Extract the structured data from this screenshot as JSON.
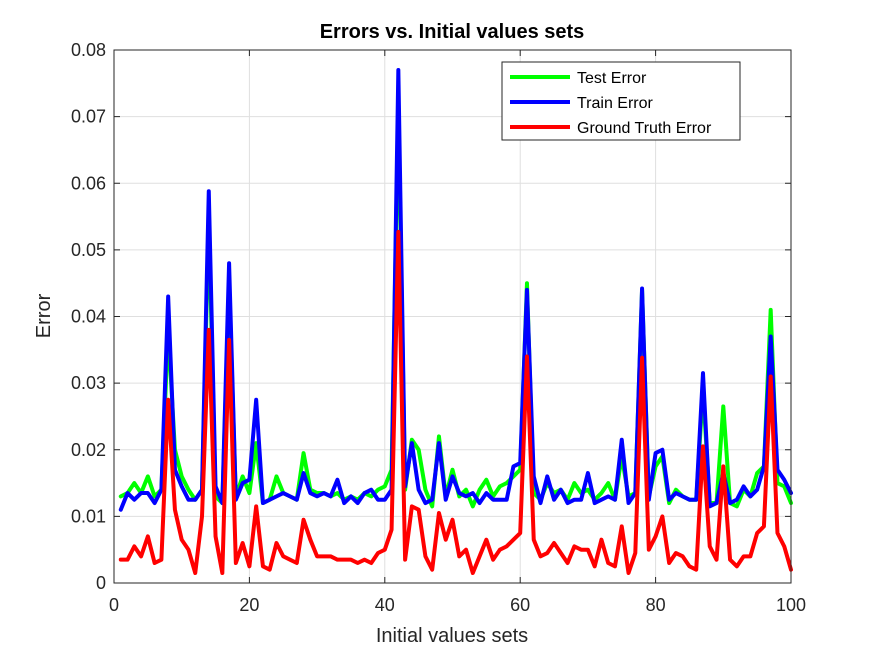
{
  "chart_data": {
    "type": "line",
    "title": "Errors vs. Initial values sets",
    "xlabel": "Initial values sets",
    "ylabel": "Error",
    "xlim": [
      0,
      100
    ],
    "ylim": [
      0,
      0.08
    ],
    "xticks": [
      0,
      20,
      40,
      60,
      80,
      100
    ],
    "yticks": [
      0,
      0.01,
      0.02,
      0.03,
      0.04,
      0.05,
      0.06,
      0.07,
      0.08
    ],
    "xtick_labels": [
      "0",
      "20",
      "40",
      "60",
      "80",
      "100"
    ],
    "ytick_labels": [
      "0",
      "0.01",
      "0.02",
      "0.03",
      "0.04",
      "0.05",
      "0.06",
      "0.07",
      "0.08"
    ],
    "grid": true,
    "legend_position": "top-right",
    "x": [
      1,
      2,
      3,
      4,
      5,
      6,
      7,
      8,
      9,
      10,
      11,
      12,
      13,
      14,
      15,
      16,
      17,
      18,
      19,
      20,
      21,
      22,
      23,
      24,
      25,
      26,
      27,
      28,
      29,
      30,
      31,
      32,
      33,
      34,
      35,
      36,
      37,
      38,
      39,
      40,
      41,
      42,
      43,
      44,
      45,
      46,
      47,
      48,
      49,
      50,
      51,
      52,
      53,
      54,
      55,
      56,
      57,
      58,
      59,
      60,
      61,
      62,
      63,
      64,
      65,
      66,
      67,
      68,
      69,
      70,
      71,
      72,
      73,
      74,
      75,
      76,
      77,
      78,
      79,
      80,
      81,
      82,
      83,
      84,
      85,
      86,
      87,
      88,
      89,
      90,
      91,
      92,
      93,
      94,
      95,
      96,
      97,
      98,
      99,
      100
    ],
    "series": [
      {
        "name": "Test Error",
        "color": "#00ff00",
        "values": [
          0.013,
          0.0135,
          0.015,
          0.0135,
          0.016,
          0.013,
          0.014,
          0.038,
          0.02,
          0.016,
          0.014,
          0.0125,
          0.014,
          0.055,
          0.013,
          0.012,
          0.045,
          0.013,
          0.016,
          0.0135,
          0.021,
          0.012,
          0.0125,
          0.016,
          0.0135,
          0.013,
          0.0125,
          0.0195,
          0.014,
          0.0135,
          0.0135,
          0.013,
          0.0135,
          0.0125,
          0.013,
          0.0125,
          0.0135,
          0.013,
          0.014,
          0.0145,
          0.017,
          0.072,
          0.014,
          0.0215,
          0.02,
          0.014,
          0.0115,
          0.022,
          0.013,
          0.017,
          0.013,
          0.014,
          0.0115,
          0.014,
          0.0155,
          0.013,
          0.0145,
          0.015,
          0.016,
          0.017,
          0.045,
          0.0135,
          0.0125,
          0.015,
          0.0135,
          0.014,
          0.0125,
          0.015,
          0.0135,
          0.014,
          0.0125,
          0.0135,
          0.015,
          0.0125,
          0.019,
          0.013,
          0.0135,
          0.044,
          0.013,
          0.0175,
          0.019,
          0.012,
          0.014,
          0.013,
          0.0125,
          0.0125,
          0.029,
          0.012,
          0.012,
          0.0265,
          0.012,
          0.0115,
          0.014,
          0.013,
          0.0165,
          0.0175,
          0.041,
          0.015,
          0.0145,
          0.012
        ]
      },
      {
        "name": "Train Error",
        "color": "#0000ff",
        "values": [
          0.011,
          0.0135,
          0.0125,
          0.0135,
          0.0135,
          0.012,
          0.014,
          0.043,
          0.017,
          0.0145,
          0.0125,
          0.0125,
          0.014,
          0.0588,
          0.0145,
          0.012,
          0.048,
          0.0125,
          0.015,
          0.0155,
          0.0275,
          0.012,
          0.0125,
          0.013,
          0.0135,
          0.013,
          0.0125,
          0.0165,
          0.0135,
          0.013,
          0.0135,
          0.013,
          0.0155,
          0.012,
          0.013,
          0.012,
          0.0135,
          0.014,
          0.0125,
          0.0125,
          0.014,
          0.077,
          0.0145,
          0.021,
          0.014,
          0.012,
          0.0125,
          0.021,
          0.0125,
          0.016,
          0.0135,
          0.013,
          0.0135,
          0.012,
          0.0135,
          0.0125,
          0.0125,
          0.0125,
          0.0175,
          0.018,
          0.044,
          0.016,
          0.012,
          0.016,
          0.0125,
          0.014,
          0.012,
          0.0125,
          0.0125,
          0.0165,
          0.012,
          0.0125,
          0.013,
          0.0125,
          0.0215,
          0.012,
          0.0135,
          0.0442,
          0.0125,
          0.0195,
          0.02,
          0.0125,
          0.0135,
          0.013,
          0.0125,
          0.0125,
          0.0315,
          0.0115,
          0.012,
          0.0165,
          0.012,
          0.0125,
          0.0145,
          0.013,
          0.014,
          0.0175,
          0.037,
          0.017,
          0.0155,
          0.0135
        ]
      },
      {
        "name": "Ground Truth Error",
        "color": "#ff0000",
        "values": [
          0.0035,
          0.0035,
          0.0055,
          0.004,
          0.007,
          0.003,
          0.0035,
          0.0275,
          0.011,
          0.0065,
          0.005,
          0.0015,
          0.01,
          0.038,
          0.007,
          0.0015,
          0.0365,
          0.003,
          0.006,
          0.0025,
          0.0115,
          0.0025,
          0.002,
          0.006,
          0.004,
          0.0035,
          0.003,
          0.0095,
          0.0065,
          0.004,
          0.004,
          0.004,
          0.0035,
          0.0035,
          0.0035,
          0.003,
          0.0035,
          0.003,
          0.0045,
          0.005,
          0.008,
          0.0527,
          0.0035,
          0.0115,
          0.011,
          0.004,
          0.002,
          0.0105,
          0.0065,
          0.0095,
          0.004,
          0.005,
          0.0015,
          0.004,
          0.0065,
          0.0035,
          0.005,
          0.0055,
          0.0065,
          0.0075,
          0.034,
          0.0065,
          0.004,
          0.0045,
          0.006,
          0.0045,
          0.003,
          0.0055,
          0.005,
          0.005,
          0.0025,
          0.0065,
          0.003,
          0.0025,
          0.0085,
          0.0015,
          0.0045,
          0.0338,
          0.005,
          0.007,
          0.01,
          0.003,
          0.0045,
          0.004,
          0.0025,
          0.002,
          0.0205,
          0.0055,
          0.0035,
          0.0175,
          0.0035,
          0.0025,
          0.004,
          0.004,
          0.0075,
          0.0085,
          0.031,
          0.0075,
          0.0055,
          0.002
        ]
      }
    ]
  }
}
